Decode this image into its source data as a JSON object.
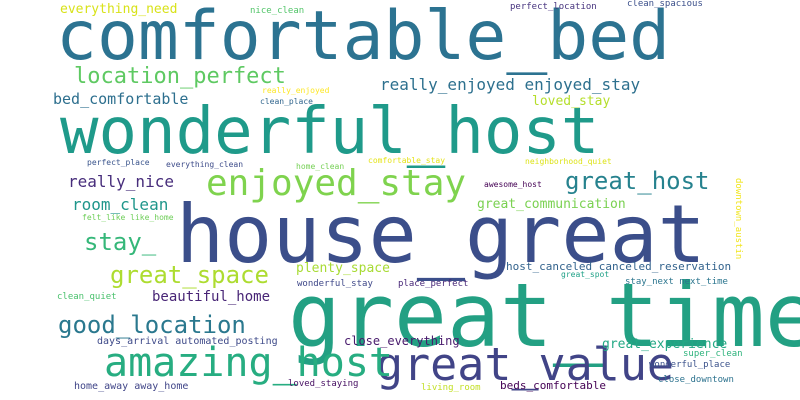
{
  "words": [
    {
      "text": "comfortable_bed",
      "color": "#2c7391"
    },
    {
      "text": "wonderful_host",
      "color": "#1f9a8a"
    },
    {
      "text": "house_great",
      "color": "#3b4e8a"
    },
    {
      "text": "great_time",
      "color": "#23a083"
    },
    {
      "text": "enjoyed_stay",
      "color": "#7fd34e"
    },
    {
      "text": "great_value",
      "color": "#414487"
    },
    {
      "text": "amazing_host",
      "color": "#27ad81"
    },
    {
      "text": "location_perfect",
      "color": "#5ec962"
    },
    {
      "text": "great_host",
      "color": "#26828e"
    },
    {
      "text": "good_location",
      "color": "#2a788e"
    },
    {
      "text": "great_space",
      "color": "#addc30"
    },
    {
      "text": "really_enjoyed enjoyed_stay",
      "color": "#2d708e"
    },
    {
      "text": "stay_",
      "color": "#35b779"
    },
    {
      "text": "really_nice",
      "color": "#472d7b"
    },
    {
      "text": "room_clean",
      "color": "#1f968b"
    },
    {
      "text": "bed_comfortable",
      "color": "#2d6f8e"
    },
    {
      "text": "beautiful_home",
      "color": "#482576"
    },
    {
      "text": "great_communication",
      "color": "#7ad151"
    },
    {
      "text": "great_experience",
      "color": "#22a884"
    },
    {
      "text": "plenty_space",
      "color": "#a8db34"
    },
    {
      "text": "loved_stay",
      "color": "#b5de2b"
    },
    {
      "text": "close_everything",
      "color": "#481a6c"
    },
    {
      "text": "everything_need",
      "color": "#d8e219"
    },
    {
      "text": "host_canceled canceled_reservation",
      "color": "#33638d"
    },
    {
      "text": "beds_comfortable",
      "color": "#440154"
    },
    {
      "text": "days_arrival automated_posting",
      "color": "#3e4a89"
    },
    {
      "text": "home_away away_home",
      "color": "#404588"
    },
    {
      "text": "wonderful_stay",
      "color": "#3f4889"
    },
    {
      "text": "place_perfect",
      "color": "#482878"
    },
    {
      "text": "clean_quiet",
      "color": "#4ac16d"
    },
    {
      "text": "felt_like like_home",
      "color": "#6ece58"
    },
    {
      "text": "perfect_place",
      "color": "#3a548c"
    },
    {
      "text": "everything_clean",
      "color": "#3e4c8a"
    },
    {
      "text": "home_clean",
      "color": "#75d054"
    },
    {
      "text": "comfortable_stay",
      "color": "#e5e419"
    },
    {
      "text": "neighborhood_quiet",
      "color": "#dde318"
    },
    {
      "text": "awesome_host",
      "color": "#440154"
    },
    {
      "text": "great_spot",
      "color": "#1fa187"
    },
    {
      "text": "stay_next next_time",
      "color": "#2b758e"
    },
    {
      "text": "super_clean",
      "color": "#2eb37c"
    },
    {
      "text": "wonderful_place",
      "color": "#3b528b"
    },
    {
      "text": "close_downtown",
      "color": "#2c728e"
    },
    {
      "text": "loved_staying",
      "color": "#471063"
    },
    {
      "text": "living_room",
      "color": "#c2df23"
    },
    {
      "text": "nice_clean",
      "color": "#52c569"
    },
    {
      "text": "perfect_location",
      "color": "#46337e"
    },
    {
      "text": "clean_spacious",
      "color": "#3c508b"
    },
    {
      "text": "really_enjoyed",
      "color": "#fde725"
    },
    {
      "text": "clean_place",
      "color": "#31668e"
    },
    {
      "text": "downtown_austin",
      "color": "#f1e51d"
    }
  ]
}
